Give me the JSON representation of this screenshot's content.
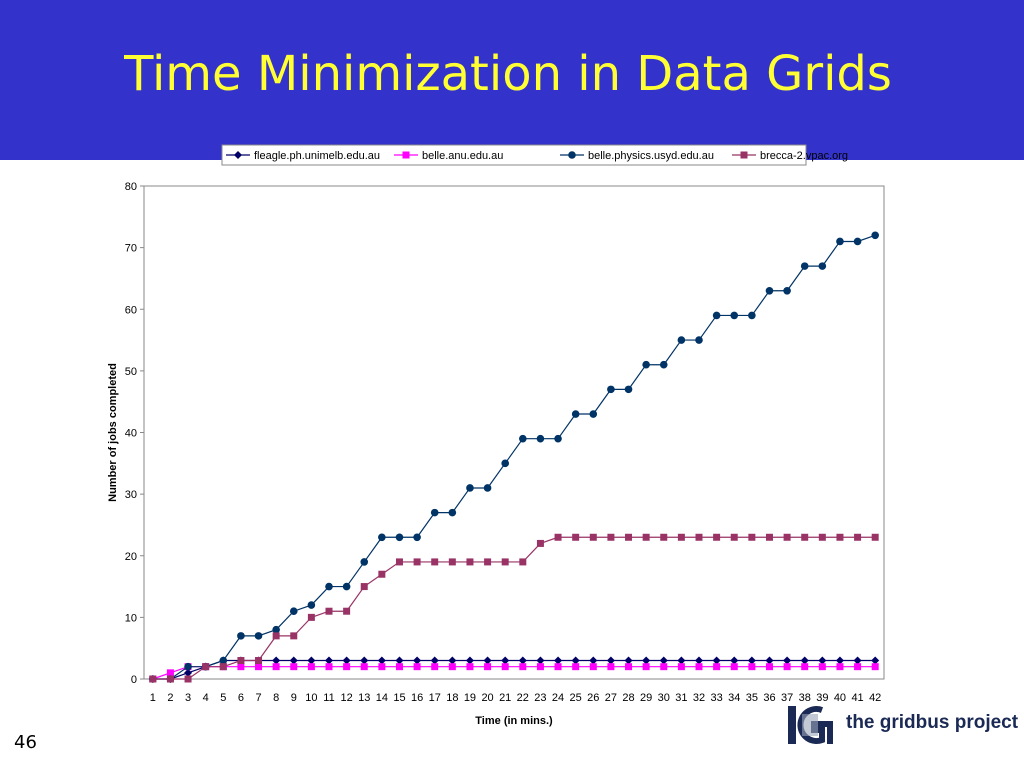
{
  "slide": {
    "title": "Time Minimization in Data Grids",
    "number": "46"
  },
  "logo": {
    "text": "the gridbus project"
  },
  "colors": {
    "header_bg": "#3333cc",
    "title": "#ffff33"
  },
  "chart_data": {
    "type": "line",
    "title": "",
    "xlabel": "Time (in mins.)",
    "ylabel": "Number of jobs completed",
    "x": [
      1,
      2,
      3,
      4,
      5,
      6,
      7,
      8,
      9,
      10,
      11,
      12,
      13,
      14,
      15,
      16,
      17,
      18,
      19,
      20,
      21,
      22,
      23,
      24,
      25,
      26,
      27,
      28,
      29,
      30,
      31,
      32,
      33,
      34,
      35,
      36,
      37,
      38,
      39,
      40,
      41,
      42
    ],
    "ylim": [
      0,
      80
    ],
    "yticks": [
      0,
      10,
      20,
      30,
      40,
      50,
      60,
      70,
      80
    ],
    "grid": false,
    "legend": "top",
    "series": [
      {
        "name": "fleagle.ph.unimelb.edu.au",
        "color": "#000066",
        "marker": "diamond",
        "values": [
          0,
          0,
          1,
          2,
          3,
          3,
          3,
          3,
          3,
          3,
          3,
          3,
          3,
          3,
          3,
          3,
          3,
          3,
          3,
          3,
          3,
          3,
          3,
          3,
          3,
          3,
          3,
          3,
          3,
          3,
          3,
          3,
          3,
          3,
          3,
          3,
          3,
          3,
          3,
          3,
          3,
          3
        ]
      },
      {
        "name": "belle.anu.edu.au",
        "color": "#ff00ff",
        "marker": "square",
        "values": [
          0,
          1,
          2,
          2,
          2,
          2,
          2,
          2,
          2,
          2,
          2,
          2,
          2,
          2,
          2,
          2,
          2,
          2,
          2,
          2,
          2,
          2,
          2,
          2,
          2,
          2,
          2,
          2,
          2,
          2,
          2,
          2,
          2,
          2,
          2,
          2,
          2,
          2,
          2,
          2,
          2,
          2
        ]
      },
      {
        "name": "belle.physics.usyd.edu.au",
        "color": "#003366",
        "marker": "circle",
        "values": [
          0,
          0,
          2,
          2,
          3,
          7,
          7,
          8,
          11,
          12,
          15,
          15,
          19,
          23,
          23,
          23,
          27,
          27,
          31,
          31,
          35,
          39,
          39,
          39,
          43,
          43,
          47,
          47,
          51,
          51,
          55,
          55,
          59,
          59,
          59,
          63,
          63,
          67,
          67,
          71,
          71,
          72
        ]
      },
      {
        "name": "brecca-2.vpac.org",
        "color": "#993366",
        "marker": "square",
        "values": [
          0,
          0,
          0,
          2,
          2,
          3,
          3,
          7,
          7,
          10,
          11,
          11,
          15,
          17,
          19,
          19,
          19,
          19,
          19,
          19,
          19,
          19,
          22,
          23,
          23,
          23,
          23,
          23,
          23,
          23,
          23,
          23,
          23,
          23,
          23,
          23,
          23,
          23,
          23,
          23,
          23,
          23
        ]
      }
    ]
  }
}
